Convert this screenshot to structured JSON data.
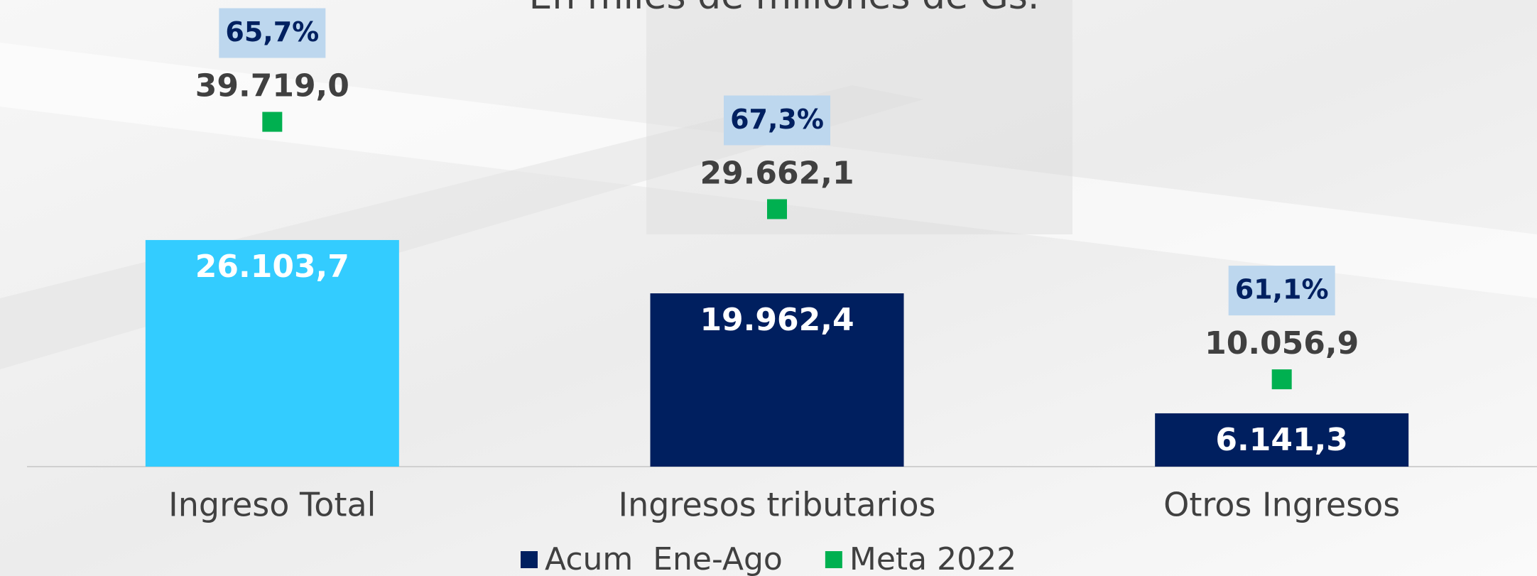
{
  "chart_data": {
    "type": "bar",
    "subtitle": "En miles de millones de Gs.",
    "categories": [
      "Ingreso Total",
      "Ingresos tributarios",
      "Otros Ingresos"
    ],
    "series": [
      {
        "name": "Acum  Ene-Ago",
        "color": "#001f5f",
        "bar_colors": [
          "#33ccff",
          "#001f5f",
          "#001f5f"
        ],
        "values": [
          26103.7,
          19962.4,
          6141.3
        ],
        "value_labels": [
          "26.103,7",
          "19.962,4",
          "6.141,3"
        ]
      },
      {
        "name": "Meta 2022",
        "color": "#00b050",
        "marker": "square",
        "values": [
          39719.0,
          29662.1,
          10056.9
        ],
        "value_labels": [
          "39.719,0",
          "29.662,1",
          "10.056,9"
        ]
      }
    ],
    "annotations": [
      "65,7%",
      "67,3%",
      "61,1%"
    ],
    "ylim": [
      0,
      45000
    ],
    "grid": false
  }
}
